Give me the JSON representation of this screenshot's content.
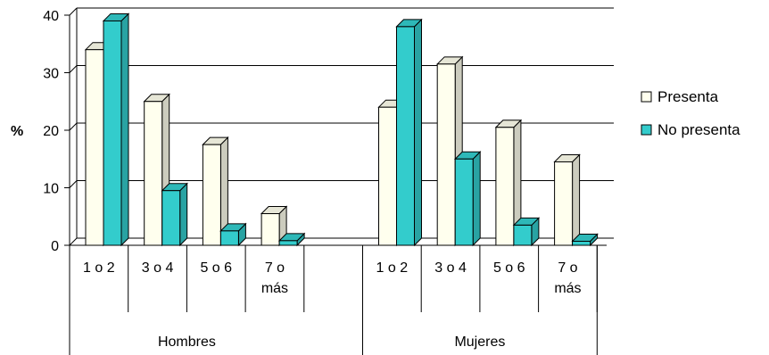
{
  "chart_data": {
    "type": "bar",
    "ylabel": "%",
    "ylim": [
      0,
      40
    ],
    "yticks": [
      "0",
      "10",
      "20",
      "30",
      "40"
    ],
    "grid": true,
    "legend_position": "right",
    "categories": [
      "1 o 2",
      "3 o 4",
      "5 o 6",
      "7 o más",
      "1 o 2",
      "3 o 4",
      "5 o 6",
      "7 o más"
    ],
    "category_lines": [
      [
        "1 o 2"
      ],
      [
        "3 o 4"
      ],
      [
        "5 o 6"
      ],
      [
        "7 o",
        "más"
      ],
      [
        "1 o 2"
      ],
      [
        "3 o 4"
      ],
      [
        "5 o 6"
      ],
      [
        "7 o",
        "más"
      ]
    ],
    "groups": [
      {
        "name": "Hombres",
        "categories": [
          "1 o 2",
          "3 o 4",
          "5 o 6",
          "7 o más"
        ]
      },
      {
        "name": "Mujeres",
        "categories": [
          "1 o 2",
          "3 o 4",
          "5 o 6",
          "7 o más"
        ]
      }
    ],
    "series": [
      {
        "name": "Presenta",
        "color": "#FFFFEE",
        "values": [
          34,
          25,
          17.5,
          5.5,
          24,
          31.5,
          20.5,
          14.5
        ]
      },
      {
        "name": "No presenta",
        "color": "#33CCCC",
        "values": [
          39,
          9.5,
          2.5,
          0.8,
          38,
          15,
          3.5,
          0.7
        ]
      }
    ]
  }
}
